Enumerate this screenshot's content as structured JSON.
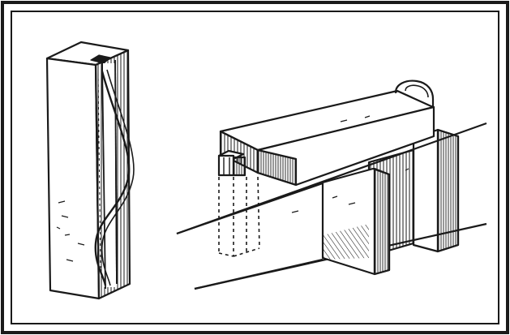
{
  "figure": {
    "ink": "#1a1a1a",
    "paper": "#ffffff"
  }
}
